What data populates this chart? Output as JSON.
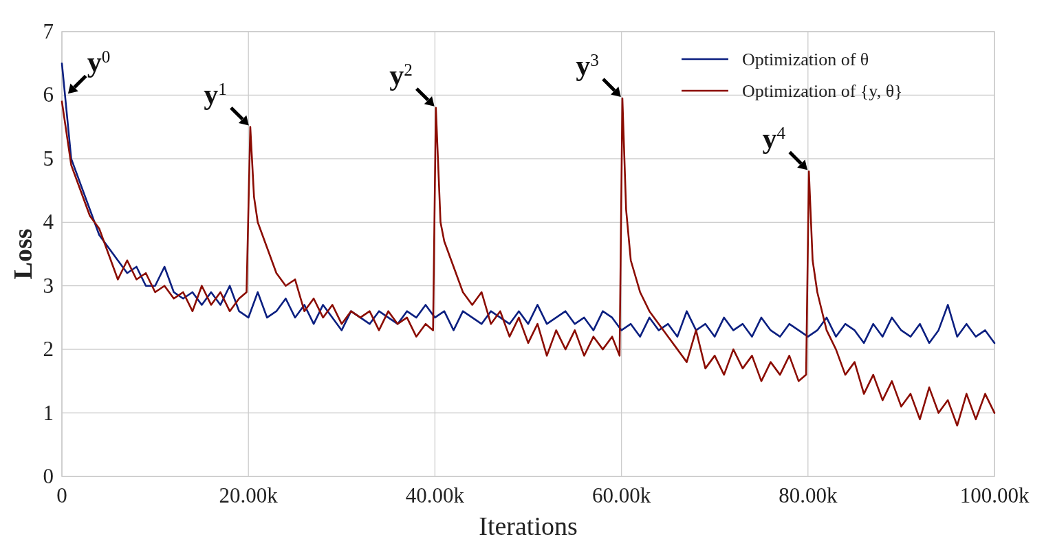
{
  "chart_data": {
    "type": "line",
    "xlabel": "Iterations",
    "ylabel": "Loss",
    "xlim": [
      0,
      100000
    ],
    "ylim": [
      0,
      7
    ],
    "xticks": [
      0,
      {
        "value": 20000,
        "label": "20.00k"
      },
      {
        "value": 40000,
        "label": "40.00k"
      },
      {
        "value": 60000,
        "label": "60.00k"
      },
      {
        "value": 80000,
        "label": "80.00k"
      },
      {
        "value": 100000,
        "label": "100.00k"
      }
    ],
    "yticks": [
      0,
      1,
      2,
      3,
      4,
      5,
      6,
      7
    ],
    "grid": true,
    "legend": "top right",
    "line_style": "solid",
    "annotations": [
      {
        "text": "y$^{0}$",
        "x": 500,
        "y": 6.0
      },
      {
        "text": "y$^{1}$",
        "x": 20200,
        "y": 5.5
      },
      {
        "text": "y$^{2}$",
        "x": 40100,
        "y": 5.8
      },
      {
        "text": "y$^{3}$",
        "x": 60100,
        "y": 5.95
      },
      {
        "text": "y$^{4}$",
        "x": 80100,
        "y": 4.8
      }
    ],
    "series": [
      {
        "name": "Optimization of θ",
        "color": "#0b1f80",
        "x": [
          0,
          1000,
          2000,
          3000,
          4000,
          5000,
          6000,
          7000,
          8000,
          9000,
          10000,
          11000,
          12000,
          13000,
          14000,
          15000,
          16000,
          17000,
          18000,
          19000,
          20000,
          21000,
          22000,
          23000,
          24000,
          25000,
          26000,
          27000,
          28000,
          29000,
          30000,
          31000,
          32000,
          33000,
          34000,
          35000,
          36000,
          37000,
          38000,
          39000,
          40000,
          41000,
          42000,
          43000,
          44000,
          45000,
          46000,
          47000,
          48000,
          49000,
          50000,
          51000,
          52000,
          53000,
          54000,
          55000,
          56000,
          57000,
          58000,
          59000,
          60000,
          61000,
          62000,
          63000,
          64000,
          65000,
          66000,
          67000,
          68000,
          69000,
          70000,
          71000,
          72000,
          73000,
          74000,
          75000,
          76000,
          77000,
          78000,
          79000,
          80000,
          81000,
          82000,
          83000,
          84000,
          85000,
          86000,
          87000,
          88000,
          89000,
          90000,
          91000,
          92000,
          93000,
          94000,
          95000,
          96000,
          97000,
          98000,
          99000,
          100000
        ],
        "values": [
          6.5,
          5.0,
          4.6,
          4.2,
          3.8,
          3.6,
          3.4,
          3.2,
          3.3,
          3.0,
          3.0,
          3.3,
          2.9,
          2.8,
          2.9,
          2.7,
          2.9,
          2.7,
          3.0,
          2.6,
          2.5,
          2.9,
          2.5,
          2.6,
          2.8,
          2.5,
          2.7,
          2.4,
          2.7,
          2.5,
          2.3,
          2.6,
          2.5,
          2.4,
          2.6,
          2.5,
          2.4,
          2.6,
          2.5,
          2.7,
          2.5,
          2.6,
          2.3,
          2.6,
          2.5,
          2.4,
          2.6,
          2.5,
          2.4,
          2.6,
          2.4,
          2.7,
          2.4,
          2.5,
          2.6,
          2.4,
          2.5,
          2.3,
          2.6,
          2.5,
          2.3,
          2.4,
          2.2,
          2.5,
          2.3,
          2.4,
          2.2,
          2.6,
          2.3,
          2.4,
          2.2,
          2.5,
          2.3,
          2.4,
          2.2,
          2.5,
          2.3,
          2.2,
          2.4,
          2.3,
          2.2,
          2.3,
          2.5,
          2.2,
          2.4,
          2.3,
          2.1,
          2.4,
          2.2,
          2.5,
          2.3,
          2.2,
          2.4,
          2.1,
          2.3,
          2.7,
          2.2,
          2.4,
          2.2,
          2.3,
          2.1
        ]
      },
      {
        "name": "Optimization of {y, θ}",
        "color": "#8b0c02",
        "x": [
          0,
          1000,
          2000,
          3000,
          4000,
          5000,
          6000,
          7000,
          8000,
          9000,
          10000,
          11000,
          12000,
          13000,
          14000,
          15000,
          16000,
          17000,
          18000,
          19000,
          19800,
          20200,
          20600,
          21000,
          22000,
          23000,
          24000,
          25000,
          26000,
          27000,
          28000,
          29000,
          30000,
          31000,
          32000,
          33000,
          34000,
          35000,
          36000,
          37000,
          38000,
          39000,
          39800,
          40100,
          40600,
          41000,
          42000,
          43000,
          44000,
          45000,
          46000,
          47000,
          48000,
          49000,
          50000,
          51000,
          52000,
          53000,
          54000,
          55000,
          56000,
          57000,
          58000,
          59000,
          59800,
          60100,
          60500,
          61000,
          62000,
          63000,
          64000,
          65000,
          66000,
          67000,
          68000,
          69000,
          70000,
          71000,
          72000,
          73000,
          74000,
          75000,
          76000,
          77000,
          78000,
          79000,
          79800,
          80100,
          80500,
          81000,
          82000,
          83000,
          84000,
          85000,
          86000,
          87000,
          88000,
          89000,
          90000,
          91000,
          92000,
          93000,
          94000,
          95000,
          96000,
          97000,
          98000,
          99000,
          100000
        ],
        "values": [
          5.9,
          4.9,
          4.5,
          4.1,
          3.9,
          3.5,
          3.1,
          3.4,
          3.1,
          3.2,
          2.9,
          3.0,
          2.8,
          2.9,
          2.6,
          3.0,
          2.7,
          2.9,
          2.6,
          2.8,
          2.9,
          5.5,
          4.4,
          4.0,
          3.6,
          3.2,
          3.0,
          3.1,
          2.6,
          2.8,
          2.5,
          2.7,
          2.4,
          2.6,
          2.5,
          2.6,
          2.3,
          2.6,
          2.4,
          2.5,
          2.2,
          2.4,
          2.3,
          5.8,
          4.0,
          3.7,
          3.3,
          2.9,
          2.7,
          2.9,
          2.4,
          2.6,
          2.2,
          2.5,
          2.1,
          2.4,
          1.9,
          2.3,
          2.0,
          2.3,
          1.9,
          2.2,
          2.0,
          2.2,
          1.9,
          5.95,
          4.2,
          3.4,
          2.9,
          2.6,
          2.4,
          2.2,
          2.0,
          1.8,
          2.3,
          1.7,
          1.9,
          1.6,
          2.0,
          1.7,
          1.9,
          1.5,
          1.8,
          1.6,
          1.9,
          1.5,
          1.6,
          4.8,
          3.4,
          2.9,
          2.3,
          2.0,
          1.6,
          1.8,
          1.3,
          1.6,
          1.2,
          1.5,
          1.1,
          1.3,
          0.9,
          1.4,
          1.0,
          1.2,
          0.8,
          1.3,
          0.9,
          1.3,
          1.0
        ]
      }
    ]
  }
}
